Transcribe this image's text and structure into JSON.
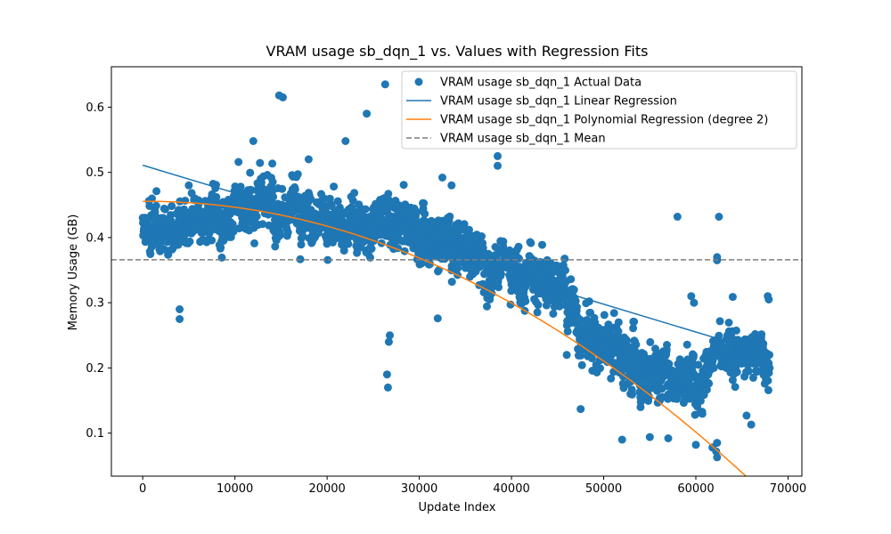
{
  "chart_data": {
    "type": "scatter",
    "title": "VRAM usage sb_dqn_1 vs. Values with Regression Fits",
    "xlabel": "Update Index",
    "ylabel": "Memory Usage (GB)",
    "xlim": [
      -3400,
      71500
    ],
    "ylim": [
      0.034,
      0.662
    ],
    "xticks": [
      0,
      10000,
      20000,
      30000,
      40000,
      50000,
      60000,
      70000
    ],
    "yticks": [
      0.1,
      0.2,
      0.3,
      0.4,
      0.5,
      0.6
    ],
    "legend_position": "top-right",
    "colors": {
      "scatter": "#1f77b4",
      "linear": "#1f77b4",
      "poly": "#ff7f0e",
      "mean": "#7f7f7f"
    },
    "series": [
      {
        "name": "VRAM usage sb_dqn_1 Actual Data",
        "kind": "scatter",
        "trend": [
          [
            0,
            0.41
          ],
          [
            2000,
            0.41
          ],
          [
            6000,
            0.415
          ],
          [
            10000,
            0.44
          ],
          [
            14000,
            0.46
          ],
          [
            18000,
            0.43
          ],
          [
            22000,
            0.42
          ],
          [
            26000,
            0.43
          ],
          [
            30000,
            0.41
          ],
          [
            35000,
            0.39
          ],
          [
            40000,
            0.35
          ],
          [
            45000,
            0.33
          ],
          [
            48000,
            0.26
          ],
          [
            52000,
            0.22
          ],
          [
            56000,
            0.19
          ],
          [
            60000,
            0.19
          ],
          [
            64000,
            0.23
          ],
          [
            68000,
            0.22
          ]
        ],
        "spread": [
          [
            0,
            0.04
          ],
          [
            15000,
            0.05
          ],
          [
            30000,
            0.05
          ],
          [
            45000,
            0.05
          ],
          [
            55000,
            0.05
          ],
          [
            68000,
            0.04
          ]
        ],
        "extreme_points": [
          [
            14800,
            0.618
          ],
          [
            15200,
            0.615
          ],
          [
            26300,
            0.635
          ],
          [
            26600,
            0.17
          ],
          [
            26500,
            0.19
          ],
          [
            26700,
            0.24
          ],
          [
            26800,
            0.25
          ],
          [
            4000,
            0.275
          ],
          [
            4000,
            0.29
          ],
          [
            24300,
            0.59
          ],
          [
            12000,
            0.548
          ],
          [
            22000,
            0.548
          ],
          [
            38500,
            0.525
          ],
          [
            38500,
            0.51
          ],
          [
            58000,
            0.432
          ],
          [
            62500,
            0.432
          ],
          [
            62300,
            0.085
          ],
          [
            62200,
            0.072
          ],
          [
            62300,
            0.063
          ],
          [
            60000,
            0.082
          ],
          [
            61800,
            0.078
          ],
          [
            52000,
            0.09
          ],
          [
            55000,
            0.094
          ],
          [
            57000,
            0.092
          ],
          [
            66000,
            0.113
          ],
          [
            65500,
            0.127
          ],
          [
            67800,
            0.31
          ],
          [
            67900,
            0.305
          ],
          [
            64000,
            0.309
          ],
          [
            59500,
            0.31
          ],
          [
            59800,
            0.3
          ],
          [
            62300,
            0.365
          ],
          [
            62300,
            0.37
          ],
          [
            47500,
            0.137
          ],
          [
            46000,
            0.22
          ],
          [
            32000,
            0.276
          ],
          [
            33500,
            0.48
          ],
          [
            32500,
            0.492
          ],
          [
            18000,
            0.52
          ],
          [
            1000,
            0.46
          ],
          [
            5000,
            0.48
          ]
        ],
        "count": 2600
      },
      {
        "name": "VRAM usage sb_dqn_1 Linear Regression",
        "kind": "line",
        "x": [
          0,
          68000
        ],
        "y": [
          0.511,
          0.221
        ]
      },
      {
        "name": "VRAM usage sb_dqn_1 Polynomial Regression (degree 2)",
        "kind": "line",
        "poly_coeffs": [
          -1e-10,
          1e-07,
          0.4555
        ],
        "x_range": [
          0,
          68000
        ]
      },
      {
        "name": "VRAM usage sb_dqn_1 Mean",
        "kind": "hline",
        "y": 0.366
      }
    ]
  }
}
